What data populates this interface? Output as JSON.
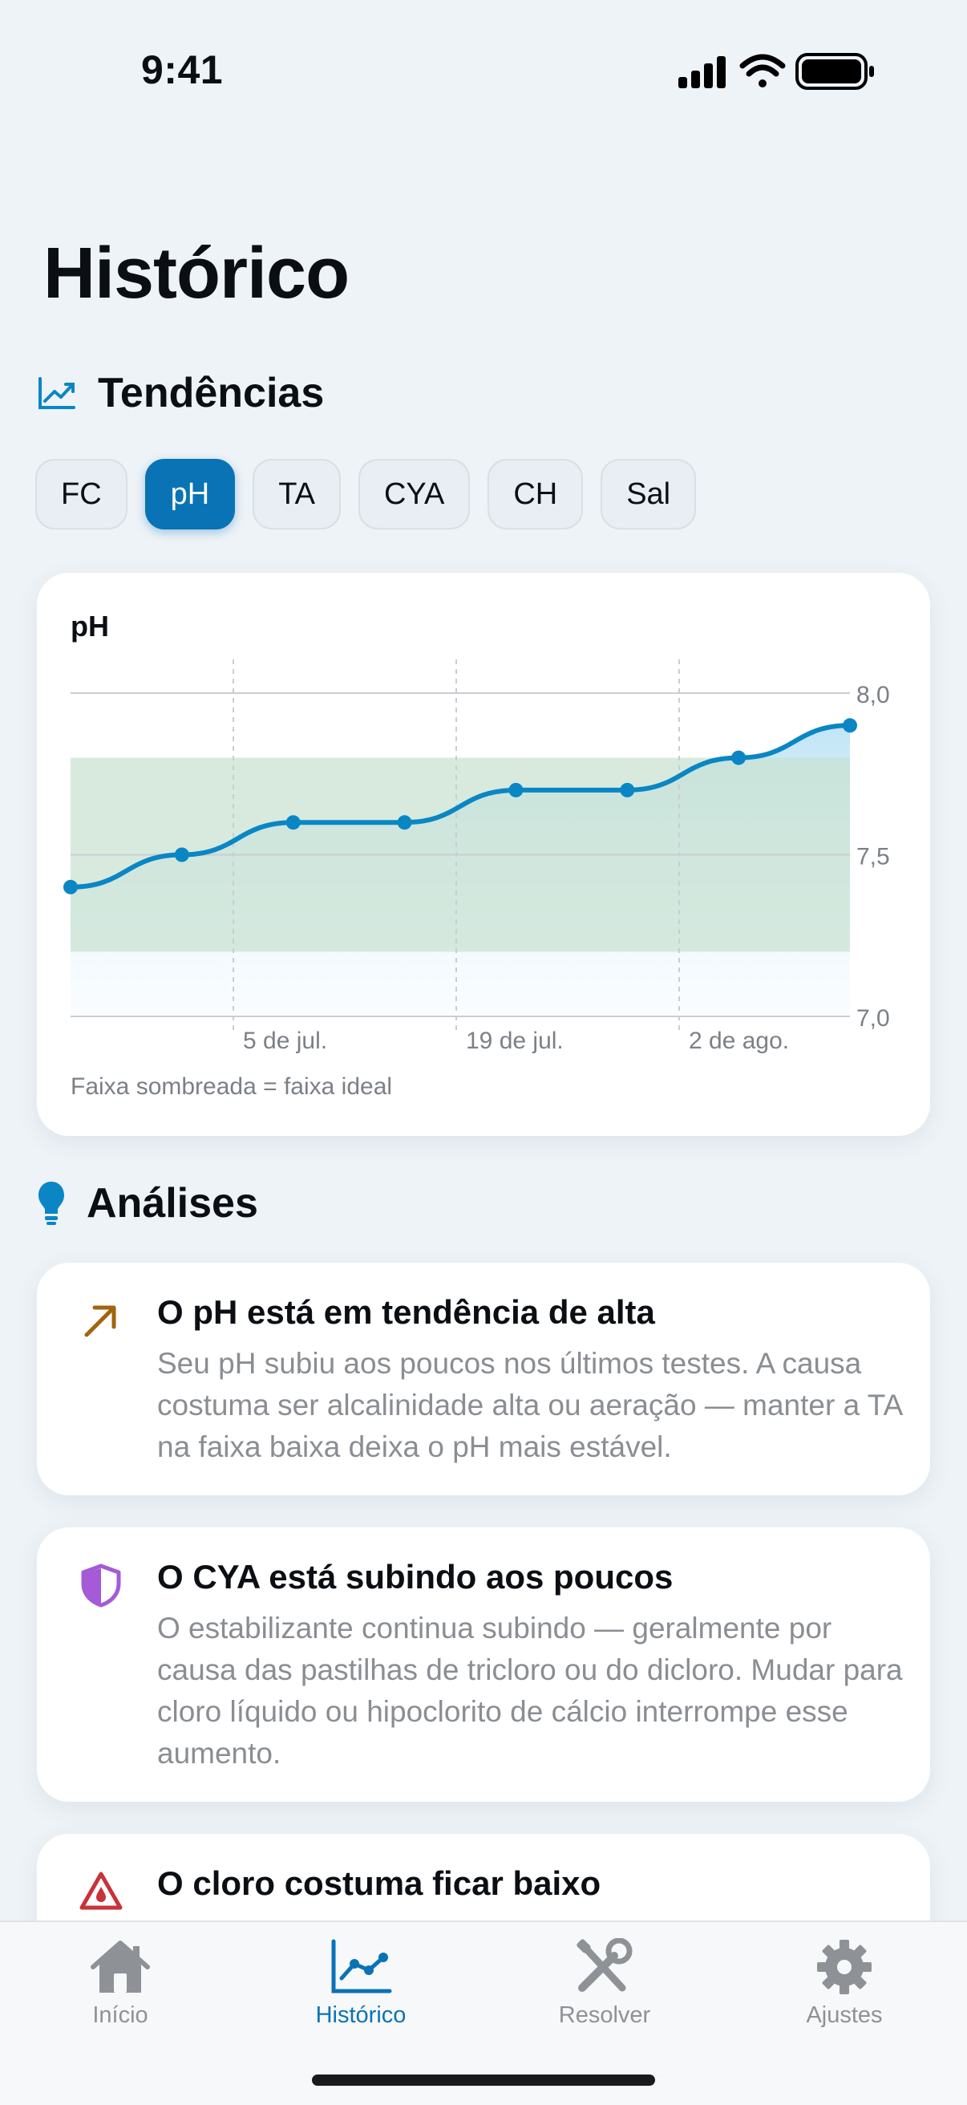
{
  "status_bar": {
    "time": "9:41"
  },
  "page": {
    "title": "Histórico"
  },
  "trends": {
    "heading": "Tendências",
    "chips": [
      "FC",
      "pH",
      "TA",
      "CYA",
      "CH",
      "Sal"
    ],
    "active_chip": "pH"
  },
  "chart_card": {
    "title": "pH",
    "note": "Faixa sombreada = faixa ideal"
  },
  "chart_data": {
    "type": "line",
    "title": "pH",
    "xlabel": "",
    "ylabel": "",
    "ylim": [
      7.0,
      8.0
    ],
    "y_ticks": [
      "8,0",
      "7,5",
      "7,0"
    ],
    "y_tick_values": [
      8.0,
      7.5,
      7.0
    ],
    "x_tick_labels": [
      "5 de jul.",
      "19 de jul.",
      "2 de ago."
    ],
    "ideal_range": [
      7.2,
      7.8
    ],
    "grid": true,
    "series": [
      {
        "values": [
          7.4,
          7.5,
          7.6,
          7.6,
          7.7,
          7.7,
          7.8,
          7.9
        ]
      }
    ],
    "colors": {
      "line": "#0a86c4",
      "ideal_band": "#c8e1d0"
    }
  },
  "insights": {
    "heading": "Análises",
    "items": [
      {
        "icon": "arrow-up-right-icon",
        "title": "O pH está em tendência de alta",
        "text": "Seu pH subiu aos poucos nos últimos testes. A causa costuma ser alcalinidade alta ou aeração — manter a TA na faixa baixa deixa o pH mais estável."
      },
      {
        "icon": "shield-icon",
        "title": "O CYA está subindo aos poucos",
        "text": "O estabilizante continua subindo — geralmente por causa das pastilhas de tricloro ou do dicloro. Mudar para cloro líquido ou hipoclorito de cálcio interrompe esse aumento."
      },
      {
        "icon": "warning-drop-icon",
        "title": "O cloro costuma ficar baixo",
        "text": ""
      }
    ]
  },
  "tabbar": {
    "tabs": [
      {
        "label": "Início",
        "icon": "house-icon"
      },
      {
        "label": "Histórico",
        "icon": "chart-icon"
      },
      {
        "label": "Resolver",
        "icon": "tools-icon"
      },
      {
        "label": "Ajustes",
        "icon": "gear-icon"
      }
    ],
    "active": "Histórico"
  }
}
